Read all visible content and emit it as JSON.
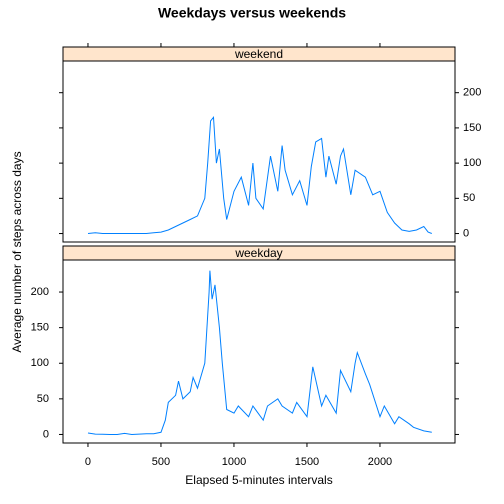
{
  "chart_data": {
    "type": "line",
    "title": "Weekdays versus weekends",
    "xlabel": "Elapsed 5-minutes intervals",
    "ylabel": "Average number of steps across days",
    "color": "#0080ff",
    "xlim": [
      -171,
      2514
    ],
    "xticks": [
      0,
      500,
      1000,
      1500,
      2000
    ],
    "ylim": [
      -12,
      245
    ],
    "yticks": [
      0,
      50,
      100,
      150,
      200
    ],
    "panels": [
      {
        "name": "weekend",
        "x": [
          0,
          50,
          100,
          150,
          200,
          300,
          400,
          450,
          500,
          550,
          600,
          650,
          700,
          750,
          800,
          820,
          840,
          860,
          880,
          900,
          930,
          950,
          1000,
          1050,
          1100,
          1130,
          1150,
          1200,
          1250,
          1300,
          1330,
          1350,
          1400,
          1450,
          1500,
          1530,
          1560,
          1600,
          1630,
          1650,
          1700,
          1730,
          1750,
          1800,
          1830,
          1900,
          1950,
          2000,
          2050,
          2100,
          2150,
          2200,
          2250,
          2300,
          2330,
          2355
        ],
        "values": [
          0,
          1,
          0,
          0,
          0,
          0,
          0,
          1,
          2,
          5,
          10,
          15,
          20,
          25,
          50,
          100,
          160,
          165,
          100,
          120,
          50,
          20,
          60,
          80,
          40,
          100,
          50,
          35,
          110,
          60,
          125,
          90,
          55,
          75,
          40,
          95,
          130,
          135,
          80,
          110,
          70,
          110,
          120,
          55,
          90,
          80,
          55,
          60,
          30,
          15,
          5,
          3,
          5,
          10,
          2,
          0
        ]
      },
      {
        "name": "weekday",
        "x": [
          0,
          50,
          100,
          150,
          200,
          250,
          300,
          350,
          400,
          450,
          500,
          530,
          550,
          600,
          620,
          650,
          700,
          720,
          750,
          800,
          830,
          835,
          850,
          870,
          900,
          920,
          950,
          1000,
          1030,
          1100,
          1130,
          1200,
          1230,
          1300,
          1330,
          1400,
          1430,
          1500,
          1540,
          1600,
          1630,
          1700,
          1730,
          1800,
          1830,
          1845,
          1900,
          1930,
          2000,
          2030,
          2100,
          2130,
          2200,
          2230,
          2300,
          2355
        ],
        "values": [
          2,
          0.5,
          0.3,
          0,
          0,
          1.5,
          0,
          0.5,
          1,
          1,
          3,
          20,
          45,
          55,
          75,
          50,
          60,
          80,
          65,
          100,
          200,
          230,
          190,
          210,
          150,
          100,
          35,
          30,
          40,
          25,
          40,
          20,
          40,
          50,
          40,
          30,
          45,
          25,
          95,
          40,
          55,
          30,
          90,
          60,
          100,
          115,
          85,
          70,
          25,
          40,
          15,
          25,
          15,
          10,
          5,
          3
        ]
      }
    ]
  }
}
